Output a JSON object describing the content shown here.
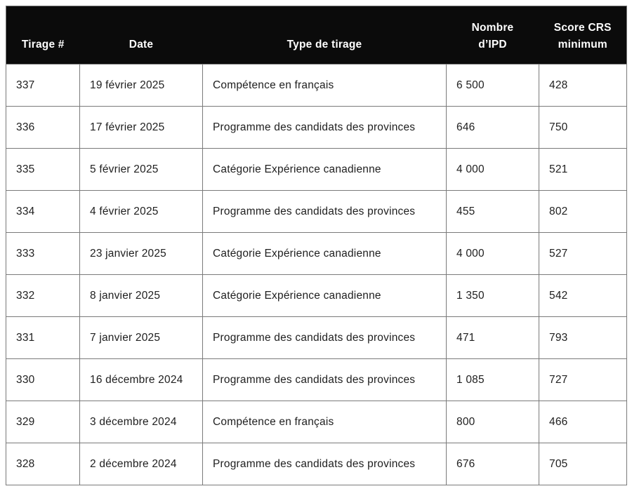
{
  "table": {
    "columns": [
      "Tirage #",
      "Date",
      "Type de tirage",
      "Nombre\nd’IPD",
      "Score CRS\nminimum"
    ],
    "rows": [
      {
        "draw": "337",
        "date": "19 février 2025",
        "type": "Compétence en français",
        "ipd": "6 500",
        "crs": "428"
      },
      {
        "draw": "336",
        "date": "17 février 2025",
        "type": "Programme des candidats des provinces",
        "ipd": "646",
        "crs": "750"
      },
      {
        "draw": "335",
        "date": "5 février 2025",
        "type": "Catégorie Expérience canadienne",
        "ipd": "4 000",
        "crs": "521"
      },
      {
        "draw": "334",
        "date": "4 février 2025",
        "type": "Programme des candidats des provinces",
        "ipd": "455",
        "crs": "802"
      },
      {
        "draw": "333",
        "date": "23 janvier 2025",
        "type": "Catégorie Expérience canadienne",
        "ipd": "4 000",
        "crs": "527"
      },
      {
        "draw": "332",
        "date": "8 janvier 2025",
        "type": "Catégorie Expérience canadienne",
        "ipd": "1 350",
        "crs": "542"
      },
      {
        "draw": "331",
        "date": "7 janvier 2025",
        "type": "Programme des candidats des provinces",
        "ipd": "471",
        "crs": "793"
      },
      {
        "draw": "330",
        "date": "16 décembre 2024",
        "type": "Programme des candidats des provinces",
        "ipd": "1 085",
        "crs": "727"
      },
      {
        "draw": "329",
        "date": "3 décembre 2024",
        "type": "Compétence en français",
        "ipd": "800",
        "crs": "466"
      },
      {
        "draw": "328",
        "date": "2 décembre 2024",
        "type": "Programme des candidats des provinces",
        "ipd": "676",
        "crs": "705"
      }
    ],
    "colors": {
      "header_bg": "#0b0b0b",
      "header_text": "#ffffff",
      "body_text": "#202020",
      "border": "#7a7a7a"
    }
  },
  "chart_data": {
    "type": "table",
    "title": "",
    "columns": [
      "Tirage #",
      "Date",
      "Type de tirage",
      "Nombre d’IPD",
      "Score CRS minimum"
    ],
    "rows": [
      [
        "337",
        "19 février 2025",
        "Compétence en français",
        "6 500",
        "428"
      ],
      [
        "336",
        "17 février 2025",
        "Programme des candidats des provinces",
        "646",
        "750"
      ],
      [
        "335",
        "5 février 2025",
        "Catégorie Expérience canadienne",
        "4 000",
        "521"
      ],
      [
        "334",
        "4 février 2025",
        "Programme des candidats des provinces",
        "455",
        "802"
      ],
      [
        "333",
        "23 janvier 2025",
        "Catégorie Expérience canadienne",
        "4 000",
        "527"
      ],
      [
        "332",
        "8 janvier 2025",
        "Catégorie Expérience canadienne",
        "1 350",
        "542"
      ],
      [
        "331",
        "7 janvier 2025",
        "Programme des candidats des provinces",
        "471",
        "793"
      ],
      [
        "330",
        "16 décembre 2024",
        "Programme des candidats des provinces",
        "1 085",
        "727"
      ],
      [
        "329",
        "3 décembre 2024",
        "Compétence en français",
        "800",
        "466"
      ],
      [
        "328",
        "2 décembre 2024",
        "Programme des candidats des provinces",
        "676",
        "705"
      ]
    ]
  }
}
